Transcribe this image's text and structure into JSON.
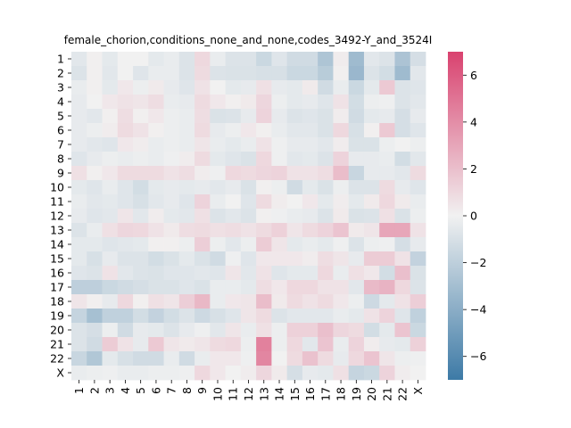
{
  "chart_data": {
    "type": "heatmap",
    "title": "female_chorion,conditions_none_and_none,codes_3492-Y_and_3524I",
    "row_labels": [
      "1",
      "2",
      "3",
      "4",
      "5",
      "6",
      "7",
      "8",
      "9",
      "10",
      "11",
      "12",
      "13",
      "14",
      "15",
      "16",
      "17",
      "18",
      "19",
      "20",
      "21",
      "22",
      "X"
    ],
    "col_labels": [
      "1",
      "2",
      "3",
      "4",
      "5",
      "6",
      "7",
      "8",
      "9",
      "10",
      "11",
      "12",
      "13",
      "14",
      "15",
      "16",
      "17",
      "18",
      "19",
      "20",
      "21",
      "22",
      "X"
    ],
    "colorbar": {
      "min": -7,
      "max": 7,
      "ticks": [
        -6,
        -4,
        -2,
        0,
        2,
        4,
        6
      ],
      "labels": [
        "−6",
        "−4",
        "−2",
        "0",
        "2",
        "4",
        "6"
      ]
    },
    "colors": {
      "negative": "#3d7aa6",
      "center": "#f1f1f1",
      "positive": "#d9426f"
    },
    "values": [
      [
        -0.6,
        0.1,
        -0.5,
        0.0,
        0.0,
        -0.5,
        -0.3,
        -0.8,
        1.0,
        -0.3,
        -0.8,
        -0.8,
        -1.5,
        -0.7,
        -1.3,
        -1.3,
        -2.6,
        0.2,
        -3.2,
        -0.6,
        -0.8,
        -2.7,
        -1.1
      ],
      [
        -0.8,
        0.1,
        -0.6,
        0.0,
        -0.7,
        -0.3,
        -0.3,
        -0.8,
        0.9,
        -0.8,
        -0.9,
        -0.9,
        -1.0,
        -1.0,
        -1.5,
        -1.5,
        -2.2,
        0.1,
        -3.4,
        -0.8,
        -1.2,
        -3.2,
        -0.6
      ],
      [
        -0.3,
        0.1,
        -0.5,
        0.4,
        -0.2,
        0.3,
        -0.4,
        -0.7,
        0.6,
        0.0,
        -0.5,
        -0.4,
        0.7,
        -0.4,
        -0.5,
        0.3,
        -1.3,
        -0.3,
        -1.5,
        -0.5,
        1.6,
        -0.8,
        -0.7
      ],
      [
        -0.4,
        0.0,
        0.4,
        0.6,
        0.5,
        0.8,
        -0.3,
        -0.4,
        0.9,
        0.4,
        0.1,
        0.3,
        1.1,
        -0.2,
        -0.5,
        -0.4,
        -0.7,
        0.6,
        -1.2,
        -0.2,
        -0.1,
        -0.8,
        -0.6
      ],
      [
        -0.4,
        -0.6,
        0.1,
        0.8,
        0.1,
        0.4,
        -0.2,
        -0.3,
        0.8,
        -0.9,
        -0.8,
        -0.4,
        1.2,
        -0.4,
        -0.8,
        -0.7,
        -0.9,
        0.2,
        -1.3,
        -0.5,
        -0.4,
        -1.1,
        -0.4
      ],
      [
        -0.4,
        -0.2,
        0.2,
        0.9,
        0.6,
        0.1,
        -0.2,
        -0.3,
        0.9,
        -0.4,
        -0.2,
        0.4,
        0.1,
        -0.3,
        -0.6,
        -0.6,
        -0.9,
        1.0,
        -1.0,
        0.1,
        1.6,
        -1.1,
        -0.7
      ],
      [
        -0.4,
        -0.6,
        -0.7,
        0.4,
        0.2,
        -0.3,
        -0.2,
        -0.3,
        0.5,
        -0.3,
        -0.5,
        -0.3,
        0.6,
        -0.1,
        -0.4,
        -0.4,
        -0.6,
        0.2,
        -0.9,
        -0.9,
        -0.2,
        0.0,
        -0.2
      ],
      [
        -0.7,
        -0.4,
        -0.2,
        -0.3,
        -0.2,
        -0.3,
        -0.1,
        0.2,
        0.9,
        -0.5,
        -0.7,
        -0.9,
        1.0,
        -0.1,
        -0.6,
        -0.5,
        -0.8,
        1.2,
        -0.4,
        -0.4,
        -0.3,
        -1.2,
        -0.6
      ],
      [
        0.7,
        0.1,
        0.4,
        0.9,
        0.9,
        0.9,
        0.6,
        0.8,
        0.2,
        -0.1,
        1.0,
        0.9,
        1.1,
        1.2,
        0.6,
        0.6,
        0.8,
        2.1,
        -1.6,
        -0.4,
        -0.4,
        -0.6,
        0.9
      ],
      [
        -0.5,
        -0.7,
        -0.3,
        -0.7,
        -1.2,
        -0.5,
        -0.4,
        -0.5,
        -0.4,
        -0.6,
        -0.4,
        -0.9,
        0.1,
        -0.2,
        -1.3,
        -0.5,
        -0.9,
        -0.2,
        -0.8,
        -0.8,
        0.9,
        -0.4,
        -0.7
      ],
      [
        -0.3,
        -0.6,
        -0.5,
        -0.7,
        -1.0,
        -0.6,
        -0.4,
        -0.7,
        1.2,
        -0.3,
        0.0,
        -0.7,
        0.9,
        0.2,
        0.0,
        0.4,
        -0.5,
        0.2,
        -0.5,
        0.3,
        1.0,
        0.3,
        -0.3
      ],
      [
        -0.4,
        -0.7,
        -0.6,
        0.5,
        -0.6,
        0.2,
        -0.5,
        -0.6,
        0.7,
        -0.8,
        -0.6,
        -0.8,
        0.1,
        -0.1,
        -0.3,
        -0.4,
        -0.8,
        0.3,
        -0.9,
        -0.8,
        0.7,
        -0.9,
        -0.2
      ],
      [
        -0.8,
        -0.3,
        0.7,
        1.1,
        1.0,
        0.6,
        0.3,
        0.8,
        0.9,
        0.7,
        0.8,
        0.6,
        0.9,
        1.3,
        0.5,
        0.9,
        1.2,
        1.8,
        0.3,
        0.5,
        3.0,
        3.0,
        0.6
      ],
      [
        -0.5,
        -0.5,
        -0.7,
        -0.6,
        -0.5,
        0.1,
        0.1,
        -0.2,
        1.4,
        -0.2,
        -0.6,
        -0.2,
        1.5,
        0.5,
        -0.5,
        -0.3,
        -0.5,
        -0.1,
        -0.8,
        -0.2,
        -0.1,
        -1.1,
        -0.4
      ],
      [
        -0.5,
        -1.0,
        -0.4,
        -0.8,
        -0.8,
        -1.2,
        -0.9,
        -0.5,
        -0.9,
        -1.3,
        -0.1,
        -0.7,
        0.4,
        0.4,
        0.4,
        0.2,
        0.8,
        0.5,
        -0.4,
        1.5,
        1.5,
        0.6,
        -1.8
      ],
      [
        -0.7,
        -0.8,
        0.6,
        -0.6,
        -0.8,
        -0.9,
        -0.7,
        -0.7,
        -0.6,
        -0.7,
        0.5,
        -0.6,
        0.6,
        -0.7,
        -0.5,
        -0.5,
        1.0,
        -0.3,
        0.7,
        0.4,
        -1.2,
        2.0,
        -0.9
      ],
      [
        -2.0,
        -2.0,
        -1.5,
        -1.3,
        -1.1,
        -0.9,
        -0.9,
        -0.7,
        -0.9,
        -0.3,
        -0.3,
        -0.5,
        0.8,
        0.4,
        1.0,
        1.0,
        0.6,
        0.6,
        -0.6,
        2.2,
        2.5,
        1.0,
        -0.8
      ],
      [
        0.5,
        0.1,
        -0.4,
        1.0,
        0.1,
        0.7,
        0.5,
        1.4,
        2.3,
        -0.3,
        0.4,
        0.5,
        2.1,
        0.3,
        0.9,
        0.6,
        0.9,
        0.4,
        -0.2,
        -1.4,
        -0.5,
        0.6,
        1.4
      ],
      [
        -1.7,
        -2.9,
        -1.9,
        -1.9,
        -1.2,
        -1.8,
        -1.2,
        -0.8,
        -1.4,
        -1.0,
        -0.7,
        0.5,
        0.9,
        -0.8,
        -0.6,
        -0.6,
        -0.6,
        -0.3,
        -0.5,
        0.6,
        1.2,
        -0.7,
        -1.9
      ],
      [
        -0.8,
        -1.1,
        -0.2,
        -1.3,
        -0.4,
        -0.5,
        -0.8,
        -0.4,
        -0.1,
        -0.6,
        0.5,
        -0.3,
        0.7,
        -0.2,
        1.3,
        1.3,
        2.0,
        1.1,
        0.9,
        -1.2,
        -0.5,
        1.8,
        -1.5
      ],
      [
        -0.8,
        -1.3,
        1.5,
        0.6,
        -0.4,
        1.6,
        0.5,
        0.3,
        0.5,
        0.9,
        1.0,
        -0.2,
        4.5,
        -0.2,
        1.0,
        -0.6,
        1.8,
        -0.3,
        1.2,
        0.2,
        -0.4,
        -0.5,
        1.3
      ],
      [
        -1.6,
        -2.5,
        -0.5,
        -1.0,
        -1.3,
        -1.3,
        -0.3,
        -1.3,
        -0.3,
        0.4,
        0.4,
        -0.1,
        4.3,
        0.0,
        0.9,
        1.9,
        0.9,
        -0.4,
        1.0,
        1.8,
        0.5,
        -0.2,
        -0.1
      ],
      [
        -0.3,
        -0.2,
        -0.1,
        -0.3,
        -0.3,
        -0.2,
        -0.2,
        -0.1,
        1.0,
        0.4,
        0.0,
        0.2,
        1.1,
        0.3,
        -1.1,
        -0.4,
        -0.5,
        0.7,
        -1.7,
        -1.5,
        1.2,
        0.2,
        0.0
      ]
    ]
  }
}
